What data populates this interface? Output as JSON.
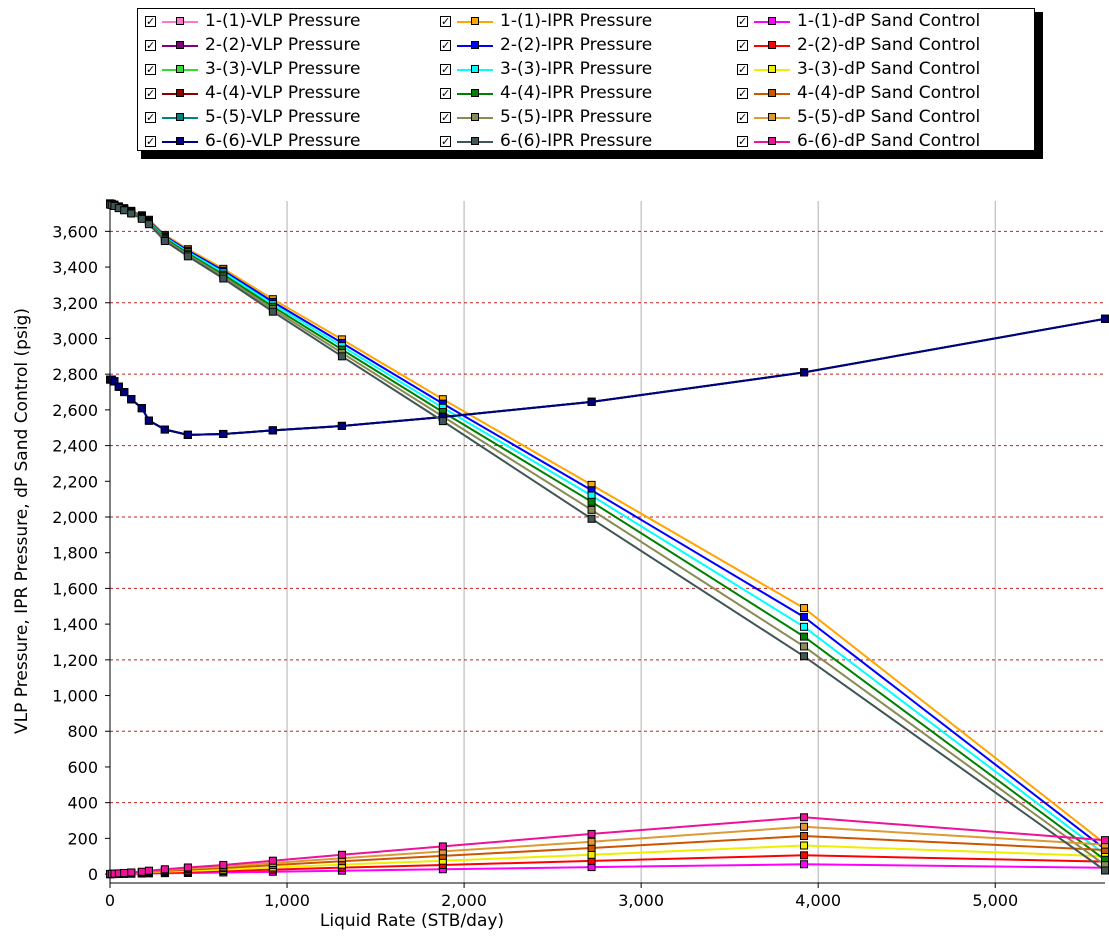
{
  "chart_data": {
    "type": "line",
    "xlabel": "Liquid Rate  (STB/day)",
    "ylabel": "VLP Pressure, IPR Pressure, dP Sand Control  (psig)",
    "xlim": [
      0,
      5620
    ],
    "ylim": [
      -50,
      3770
    ],
    "x_ticks": [
      "0",
      "1,000",
      "2,000",
      "3,000",
      "4,000",
      "5,000"
    ],
    "x_tick_values": [
      0,
      1000,
      2000,
      3000,
      4000,
      5000
    ],
    "y_ticks": [
      "0",
      "200",
      "400",
      "600",
      "800",
      "1,000",
      "1,200",
      "1,400",
      "1,600",
      "1,800",
      "2,000",
      "2,200",
      "2,400",
      "2,600",
      "2,800",
      "3,000",
      "3,200",
      "3,400",
      "3,600"
    ],
    "y_tick_values": [
      0,
      200,
      400,
      600,
      800,
      1000,
      1200,
      1400,
      1600,
      1800,
      2000,
      2200,
      2400,
      2600,
      2800,
      3000,
      3200,
      3400,
      3600
    ],
    "grid": {
      "vertical": "solid-gray",
      "horizontal": "dashed-red"
    },
    "legend_position": "top",
    "x": [
      0,
      10,
      25,
      50,
      80,
      120,
      180,
      220,
      310,
      440,
      640,
      920,
      1310,
      1880,
      2720,
      3920,
      5620
    ],
    "series": [
      {
        "name": "1-(1)-VLP Pressure",
        "color": "#ff77cc",
        "values": [
          2770,
          2770,
          2760,
          2730,
          2700,
          2660,
          2610,
          2540,
          2490,
          2460,
          2465,
          2485,
          2510,
          2560,
          2645,
          2810,
          3110
        ]
      },
      {
        "name": "1-(1)-IPR Pressure",
        "color": "#ffa500",
        "values": [
          3757,
          3755,
          3750,
          3740,
          3730,
          3715,
          3690,
          3665,
          3580,
          3500,
          3390,
          3220,
          2995,
          2660,
          2180,
          1490,
          170
        ]
      },
      {
        "name": "1-(1)-dP Sand Control",
        "color": "#ff00ff",
        "values": [
          0,
          0,
          0,
          1,
          1,
          2,
          3,
          4,
          5,
          6,
          9,
          13,
          19,
          27,
          39,
          55,
          35
        ]
      },
      {
        "name": "2-(2)-VLP Pressure",
        "color": "#800080",
        "values": [
          2770,
          2770,
          2760,
          2730,
          2700,
          2660,
          2610,
          2540,
          2490,
          2460,
          2465,
          2485,
          2510,
          2560,
          2645,
          2810,
          3110
        ]
      },
      {
        "name": "2-(2)-IPR Pressure",
        "color": "#0000ff",
        "values": [
          3755,
          3753,
          3748,
          3738,
          3727,
          3712,
          3686,
          3660,
          3573,
          3492,
          3380,
          3205,
          2975,
          2635,
          2150,
          1440,
          140
        ]
      },
      {
        "name": "2-(2)-dP Sand Control",
        "color": "#ff0000",
        "values": [
          0,
          0,
          1,
          1,
          2,
          3,
          5,
          7,
          9,
          12,
          17,
          25,
          36,
          51,
          74,
          105,
          70
        ]
      },
      {
        "name": "3-(3)-VLP Pressure",
        "color": "#33dd33",
        "values": [
          2770,
          2770,
          2760,
          2730,
          2700,
          2660,
          2610,
          2540,
          2490,
          2460,
          2465,
          2485,
          2510,
          2560,
          2645,
          2810,
          3110
        ]
      },
      {
        "name": "3-(3)-IPR Pressure",
        "color": "#00ffff",
        "values": [
          3754,
          3752,
          3747,
          3736,
          3725,
          3709,
          3682,
          3655,
          3566,
          3484,
          3370,
          3192,
          2957,
          2612,
          2120,
          1385,
          110
        ]
      },
      {
        "name": "3-(3)-dP Sand Control",
        "color": "#eeee00",
        "values": [
          0,
          0,
          1,
          2,
          3,
          5,
          7,
          10,
          14,
          18,
          25,
          37,
          53,
          75,
          108,
          160,
          100
        ]
      },
      {
        "name": "4-(4)-VLP Pressure",
        "color": "#8b0000",
        "values": [
          2770,
          2770,
          2760,
          2730,
          2700,
          2660,
          2610,
          2540,
          2490,
          2460,
          2465,
          2485,
          2510,
          2560,
          2645,
          2810,
          3110
        ]
      },
      {
        "name": "4-(4)-IPR Pressure",
        "color": "#008000",
        "values": [
          3752,
          3750,
          3745,
          3734,
          3722,
          3706,
          3678,
          3650,
          3560,
          3476,
          3358,
          3178,
          2938,
          2588,
          2085,
          1330,
          80
        ]
      },
      {
        "name": "4-(4)-dP Sand Control",
        "color": "#cc5500",
        "values": [
          0,
          1,
          2,
          3,
          4,
          6,
          9,
          13,
          18,
          25,
          34,
          50,
          72,
          102,
          146,
          213,
          135
        ]
      },
      {
        "name": "5-(5)-VLP Pressure",
        "color": "#008080",
        "values": [
          2770,
          2770,
          2760,
          2730,
          2700,
          2660,
          2610,
          2540,
          2490,
          2460,
          2465,
          2485,
          2510,
          2560,
          2645,
          2810,
          3110
        ]
      },
      {
        "name": "5-(5)-IPR Pressure",
        "color": "#8a8a55",
        "values": [
          3751,
          3749,
          3743,
          3732,
          3720,
          3703,
          3674,
          3645,
          3553,
          3468,
          3347,
          3164,
          2919,
          2563,
          2040,
          1275,
          50
        ]
      },
      {
        "name": "5-(5)-dP Sand Control",
        "color": "#dd9933",
        "values": [
          0,
          1,
          2,
          3,
          5,
          8,
          11,
          16,
          22,
          31,
          42,
          62,
          89,
          127,
          181,
          265,
          165
        ]
      },
      {
        "name": "6-(6)-VLP Pressure",
        "color": "#000080",
        "values": [
          2770,
          2770,
          2760,
          2730,
          2700,
          2660,
          2610,
          2540,
          2490,
          2460,
          2465,
          2485,
          2510,
          2560,
          2645,
          2810,
          3110
        ]
      },
      {
        "name": "6-(6)-IPR Pressure",
        "color": "#405555",
        "values": [
          3750,
          3748,
          3742,
          3730,
          3718,
          3700,
          3670,
          3640,
          3546,
          3460,
          3336,
          3150,
          2900,
          2537,
          1990,
          1220,
          20
        ]
      },
      {
        "name": "6-(6)-dP Sand Control",
        "color": "#ee1199",
        "values": [
          0,
          1,
          2,
          4,
          6,
          9,
          13,
          19,
          27,
          37,
          51,
          75,
          108,
          155,
          225,
          318,
          190
        ]
      }
    ]
  }
}
